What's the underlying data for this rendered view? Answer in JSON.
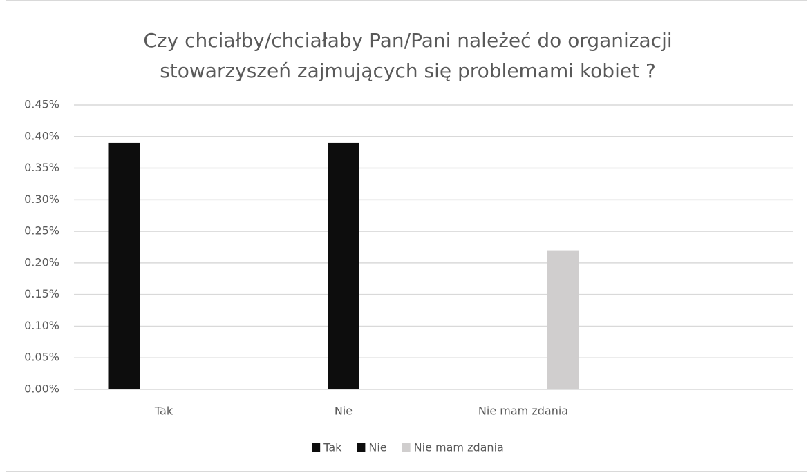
{
  "chart_data": {
    "type": "bar",
    "title": "Czy chciałby/chciałaby Pan/Pani należeć do organizacji stowarzyszeń zajmujących się problemami kobiet ?",
    "categories": [
      "Tak",
      "Nie",
      "Nie mam zdania",
      null
    ],
    "series": [
      {
        "name": "Tak",
        "color": "#0d0d0d",
        "values": [
          0.39,
          null,
          null,
          null
        ]
      },
      {
        "name": "Nie",
        "color": "#0d0d0d",
        "values": [
          null,
          0.39,
          null,
          null
        ]
      },
      {
        "name": "Nie mam zdania",
        "color": "#d0cece",
        "values": [
          null,
          null,
          0.22,
          null
        ]
      }
    ],
    "ylim": [
      0,
      0.45
    ],
    "yticks": [
      {
        "value": 0,
        "label": "0.00%"
      },
      {
        "value": 0.05,
        "label": "0.05%"
      },
      {
        "value": 0.1,
        "label": "0.10%"
      },
      {
        "value": 0.15,
        "label": "0.15%"
      },
      {
        "value": 0.2,
        "label": "0.20%"
      },
      {
        "value": 0.25,
        "label": "0.25%"
      },
      {
        "value": 0.3,
        "label": "0.30%"
      },
      {
        "value": 0.35,
        "label": "0.35%"
      },
      {
        "value": 0.4,
        "label": "0.40%"
      },
      {
        "value": 0.45,
        "label": "0.45%"
      }
    ],
    "grid": true,
    "legend": "bottom"
  }
}
